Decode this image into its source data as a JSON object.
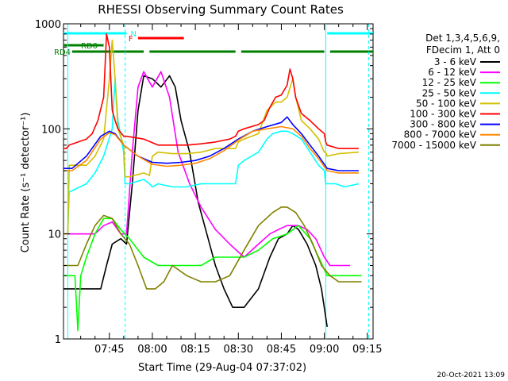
{
  "chart_data": {
    "type": "line",
    "title": "RHESSI Observing Summary Count Rates",
    "xlabel": "Start Time (29-Aug-04 07:37:02)",
    "ylabel": "Count Rate (s⁻¹ detector⁻¹)",
    "xlim": [
      -8,
      100
    ],
    "ylim": [
      1,
      1000
    ],
    "yscale": "log",
    "x_units": "minutes after 07:37:02",
    "x_ticks": [
      {
        "value": 8,
        "label": "07:45"
      },
      {
        "value": 23,
        "label": "08:00"
      },
      {
        "value": 38,
        "label": "08:15"
      },
      {
        "value": 53,
        "label": "08:30"
      },
      {
        "value": 68,
        "label": "08:45"
      },
      {
        "value": 83,
        "label": "09:00"
      },
      {
        "value": 98,
        "label": "09:15"
      }
    ],
    "y_ticks": [
      {
        "value": 1,
        "label": "1"
      },
      {
        "value": 10,
        "label": "10"
      },
      {
        "value": 100,
        "label": "100"
      },
      {
        "value": 1000,
        "label": "1000"
      }
    ],
    "legend_header": [
      "Det 1,3,4,5,6,9,",
      "FDecim 1, Att 0"
    ],
    "legend_position": "right",
    "timestamp": "20-Oct-2021 13:09",
    "flags": [
      {
        "label": "N",
        "color": "#00ffff",
        "segments": [
          [
            -8,
            14
          ],
          [
            84,
            100
          ]
        ]
      },
      {
        "label": "F",
        "color": "#ff0000",
        "segments": [
          [
            18,
            34
          ]
        ]
      },
      {
        "label": "RD0",
        "color": "#008000",
        "segments": [
          [
            -8,
            6
          ]
        ]
      },
      {
        "label": "RD4",
        "color": "#008000",
        "segments": [
          [
            -5,
            20
          ],
          [
            22,
            52
          ],
          [
            54,
            83
          ],
          [
            85,
            100
          ]
        ]
      }
    ],
    "vlines": [
      {
        "x": -6.5,
        "style": "solid",
        "color": "#00ffff"
      },
      {
        "x": 13.5,
        "style": "dashed",
        "color": "#00ffff"
      },
      {
        "x": 83.5,
        "style": "solid",
        "color": "#00ffff"
      },
      {
        "x": 98.5,
        "style": "dashed",
        "color": "#00ffff"
      }
    ],
    "series": [
      {
        "name": "3 - 6 keV",
        "color": "#000000",
        "x": [
          -8,
          5,
          7,
          9,
          12,
          14,
          16,
          18,
          20,
          23,
          26,
          29,
          31,
          33,
          36,
          39,
          42,
          45,
          48,
          51,
          55,
          60,
          64,
          67,
          70,
          72,
          74,
          77,
          80,
          82,
          84
        ],
        "y": [
          3,
          3,
          5,
          8,
          9,
          8,
          30,
          150,
          320,
          300,
          250,
          320,
          250,
          120,
          60,
          20,
          10,
          5,
          3,
          2,
          2,
          3,
          6,
          9,
          10,
          12,
          11,
          8,
          5,
          3,
          1.3
        ]
      },
      {
        "name": "6 - 12 keV",
        "color": "#ff00ff",
        "x": [
          -8,
          3,
          6,
          9,
          12,
          14,
          16,
          18,
          20,
          23,
          26,
          29,
          32,
          36,
          40,
          45,
          50,
          55,
          60,
          64,
          67,
          70,
          72,
          74,
          77,
          80,
          83,
          85,
          88,
          92
        ],
        "y": [
          10,
          10,
          12,
          13,
          10,
          10,
          60,
          250,
          350,
          250,
          350,
          200,
          60,
          30,
          18,
          11,
          8,
          6,
          8,
          10,
          11,
          12,
          12,
          12,
          11,
          9,
          6,
          5,
          5,
          5
        ]
      },
      {
        "name": "12 - 25 keV",
        "color": "#00ff00",
        "x": [
          -8,
          -4,
          -3,
          -2,
          0,
          3,
          6,
          9,
          12,
          15,
          20,
          25,
          30,
          35,
          40,
          45,
          50,
          55,
          60,
          65,
          70,
          74,
          78,
          81,
          84,
          88,
          92,
          96
        ],
        "y": [
          4,
          4,
          1.2,
          4,
          6,
          10,
          14,
          14,
          11,
          9,
          6,
          5,
          5,
          5,
          5,
          6,
          6,
          6,
          7,
          9,
          10,
          12,
          9,
          6,
          4,
          4,
          4,
          4
        ]
      },
      {
        "name": "25 - 50 keV",
        "color": "#00ffff",
        "x": [
          -8,
          -6.5,
          -6,
          0,
          3,
          6,
          9,
          10,
          11,
          13,
          13.5,
          15,
          20,
          22,
          23,
          25,
          30,
          35,
          40,
          45,
          50,
          52,
          53,
          55,
          60,
          63,
          65,
          68,
          70,
          72,
          75,
          78,
          81,
          83,
          83.5,
          84,
          87,
          90,
          95
        ],
        "y": [
          10,
          10,
          25,
          30,
          38,
          55,
          100,
          300,
          120,
          60,
          30,
          30,
          33,
          30,
          28,
          30,
          28,
          28,
          30,
          30,
          30,
          30,
          45,
          50,
          60,
          80,
          90,
          95,
          95,
          90,
          80,
          60,
          45,
          40,
          30,
          30,
          30,
          28,
          30
        ]
      },
      {
        "name": "50 - 100 keV",
        "color": "#d4c000",
        "x": [
          -8,
          -6.5,
          -6,
          0,
          3,
          6,
          8,
          9,
          10,
          11,
          13,
          13.5,
          15,
          20,
          22,
          23,
          25,
          30,
          35,
          40,
          45,
          50,
          52,
          53,
          55,
          60,
          63,
          66,
          68,
          70,
          72,
          73,
          75,
          78,
          81,
          83,
          83.5,
          84,
          88,
          95
        ],
        "y": [
          10,
          10,
          45,
          45,
          55,
          80,
          300,
          700,
          300,
          100,
          70,
          35,
          35,
          38,
          36,
          55,
          60,
          58,
          58,
          60,
          65,
          65,
          65,
          75,
          80,
          90,
          150,
          180,
          180,
          200,
          300,
          200,
          120,
          100,
          80,
          60,
          60,
          55,
          58,
          60
        ]
      },
      {
        "name": "100 - 300 keV",
        "color": "#ff0000",
        "x": [
          -8,
          -7,
          -6,
          0,
          2,
          4,
          6,
          7,
          8,
          9,
          10,
          11,
          13,
          14,
          20,
          25,
          30,
          35,
          40,
          45,
          50,
          52,
          53,
          55,
          60,
          62,
          64,
          66,
          68,
          70,
          71,
          72,
          73,
          75,
          78,
          81,
          83,
          83.5,
          84,
          88,
          95
        ],
        "y": [
          65,
          65,
          70,
          80,
          90,
          120,
          200,
          800,
          600,
          150,
          120,
          100,
          85,
          85,
          80,
          70,
          70,
          70,
          72,
          75,
          80,
          85,
          95,
          100,
          110,
          120,
          160,
          200,
          210,
          260,
          370,
          300,
          200,
          140,
          120,
          100,
          90,
          75,
          70,
          65,
          65
        ]
      },
      {
        "name": "300 - 800 keV",
        "color": "#0000ff",
        "x": [
          -8,
          -5,
          0,
          5,
          8,
          10,
          13,
          18,
          23,
          28,
          33,
          38,
          43,
          48,
          53,
          58,
          63,
          68,
          70,
          72,
          75,
          78,
          81,
          84,
          88,
          95
        ],
        "y": [
          42,
          42,
          55,
          85,
          95,
          90,
          70,
          55,
          48,
          47,
          48,
          50,
          55,
          65,
          80,
          95,
          105,
          115,
          130,
          110,
          90,
          70,
          55,
          42,
          40,
          40
        ]
      },
      {
        "name": "800 - 7000 keV",
        "color": "#ff8800",
        "x": [
          -8,
          -5,
          0,
          5,
          8,
          10,
          13,
          18,
          23,
          28,
          33,
          38,
          43,
          48,
          53,
          58,
          63,
          68,
          72,
          75,
          78,
          81,
          84,
          88,
          95
        ],
        "y": [
          40,
          40,
          50,
          80,
          92,
          88,
          70,
          55,
          46,
          44,
          45,
          47,
          52,
          62,
          78,
          95,
          100,
          105,
          100,
          85,
          65,
          52,
          40,
          38,
          38
        ]
      },
      {
        "name": "7000 - 15000 keV",
        "color": "#808000",
        "x": [
          -8,
          -3,
          0,
          3,
          6,
          9,
          12,
          15,
          18,
          21,
          24,
          27,
          30,
          35,
          40,
          45,
          50,
          55,
          60,
          65,
          68,
          70,
          73,
          76,
          79,
          82,
          85,
          88,
          92,
          96
        ],
        "y": [
          5,
          5,
          8,
          12,
          15,
          14,
          10,
          8,
          5,
          3,
          3,
          3.5,
          5,
          4,
          3.5,
          3.5,
          4,
          7,
          12,
          16,
          18,
          18,
          16,
          12,
          8,
          5,
          4,
          3.5,
          3.5,
          3.5
        ]
      }
    ]
  }
}
